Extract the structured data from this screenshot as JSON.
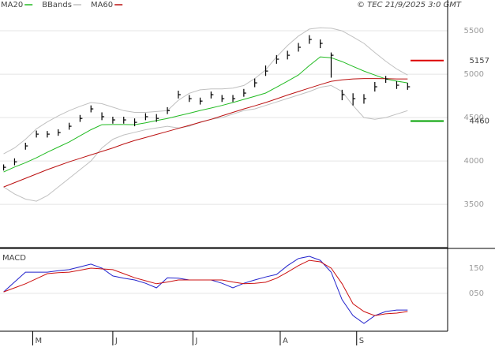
{
  "chart_data": [
    {
      "type": "ohlc",
      "source": "© TEC 21/9/2025 3:0 GMT",
      "x": [
        0,
        3,
        6,
        9,
        12,
        15,
        18,
        21,
        24,
        27,
        30,
        33,
        36,
        39,
        42,
        45,
        48,
        51,
        54,
        57,
        60,
        63,
        66,
        69,
        72,
        75,
        78,
        81,
        84,
        87,
        90,
        93,
        96,
        99,
        102,
        105,
        108,
        111
      ],
      "high": [
        3960,
        4030,
        4210,
        4350,
        4345,
        4365,
        4440,
        4530,
        4640,
        4560,
        4510,
        4510,
        4490,
        4550,
        4540,
        4620,
        4810,
        4760,
        4730,
        4800,
        4760,
        4760,
        4830,
        4950,
        5100,
        5220,
        5270,
        5360,
        5450,
        5400,
        5250,
        4820,
        4780,
        4770,
        4910,
        4980,
        4920,
        4900
      ],
      "low": [
        3890,
        3950,
        4130,
        4270,
        4270,
        4290,
        4360,
        4450,
        4560,
        4470,
        4430,
        4430,
        4400,
        4470,
        4450,
        4540,
        4720,
        4680,
        4650,
        4720,
        4680,
        4680,
        4740,
        4850,
        4980,
        5120,
        5170,
        5260,
        5350,
        5300,
        4960,
        4700,
        4640,
        4660,
        4800,
        4900,
        4830,
        4820
      ],
      "close": [
        3927,
        3990,
        4173,
        4309,
        4309,
        4327,
        4400,
        4490,
        4600,
        4510,
        4473,
        4473,
        4445,
        4510,
        4490,
        4580,
        4764,
        4718,
        4690,
        4764,
        4718,
        4718,
        4782,
        4900,
        5036,
        5173,
        5218,
        5310,
        5400,
        5355,
        5218,
        4764,
        4718,
        4718,
        4855,
        4945,
        4873,
        4855
      ],
      "color": "#000000",
      "series": [
        {
          "name": "MA20",
          "color": "#22bb22",
          "values": [
            3873,
            3930,
            3980,
            4036,
            4100,
            4160,
            4218,
            4290,
            4360,
            4418,
            4420,
            4420,
            4418,
            4440,
            4465,
            4490,
            4520,
            4550,
            4582,
            4610,
            4640,
            4673,
            4710,
            4745,
            4782,
            4850,
            4920,
            4991,
            5100,
            5200,
            5190,
            5145,
            5090,
            5036,
            4990,
            4945,
            4920,
            4900
          ]
        },
        {
          "name": "BBands",
          "color": "#c0c0c0",
          "values": [
            4082,
            4150,
            4250,
            4370,
            4450,
            4520,
            4580,
            4630,
            4673,
            4660,
            4620,
            4580,
            4560,
            4560,
            4570,
            4580,
            4700,
            4780,
            4820,
            4830,
            4830,
            4840,
            4870,
            4950,
            5050,
            5200,
            5330,
            5440,
            5520,
            5536,
            5530,
            5500,
            5430,
            5355,
            5250,
            5150,
            5060,
            4990
          ],
          "lower": [
            3700,
            3620,
            3560,
            3536,
            3600,
            3700,
            3800,
            3900,
            4000,
            4150,
            4250,
            4300,
            4330,
            4360,
            4380,
            4400,
            4380,
            4400,
            4450,
            4480,
            4500,
            4540,
            4582,
            4600,
            4640,
            4680,
            4720,
            4760,
            4800,
            4850,
            4870,
            4800,
            4640,
            4500,
            4480,
            4500,
            4540,
            4580
          ]
        },
        {
          "name": "MA60",
          "color": "#bb1111",
          "values": [
            3700,
            3750,
            3800,
            3850,
            3900,
            3945,
            3990,
            4030,
            4070,
            4110,
            4150,
            4195,
            4236,
            4270,
            4305,
            4340,
            4375,
            4410,
            4445,
            4480,
            4520,
            4560,
            4600,
            4635,
            4673,
            4715,
            4760,
            4800,
            4840,
            4880,
            4918,
            4935,
            4945,
            4950,
            4950,
            4948,
            4945,
            4945
          ]
        }
      ],
      "annotations": [
        {
          "value": 5157,
          "color": "#dd0000"
        },
        {
          "value": 4460,
          "color": "#00a000"
        }
      ],
      "xlim": [
        -1,
        122
      ],
      "ylim": [
        3010,
        5855
      ],
      "yticks": [
        3500,
        4000,
        4500,
        5000,
        5500
      ],
      "grid": true
    },
    {
      "type": "line",
      "title": "MACD",
      "x": [
        0,
        3,
        6,
        9,
        12,
        15,
        18,
        21,
        24,
        27,
        30,
        33,
        36,
        39,
        42,
        45,
        48,
        51,
        54,
        57,
        60,
        63,
        66,
        69,
        72,
        75,
        78,
        81,
        84,
        87,
        90,
        93,
        96,
        99,
        102,
        105,
        108,
        111
      ],
      "series": [
        {
          "color": "#2222cc",
          "values": [
            56,
            95,
            134,
            134,
            134,
            140,
            144,
            155,
            166,
            150,
            119,
            110,
            103,
            90,
            72,
            112,
            110,
            103,
            103,
            103,
            90,
            72,
            90,
            103,
            115,
            125,
            160,
            188,
            197,
            181,
            134,
            25,
            -38,
            -69,
            -38,
            -22,
            -16,
            -16
          ]
        },
        {
          "color": "#cc1111",
          "values": [
            56,
            72,
            88,
            108,
            128,
            132,
            134,
            142,
            150,
            147,
            144,
            128,
            112,
            100,
            88,
            95,
            103,
            103,
            103,
            103,
            103,
            95,
            88,
            90,
            94,
            110,
            134,
            160,
            181,
            175,
            150,
            88,
            9,
            -22,
            -38,
            -31,
            -28,
            -22
          ]
        }
      ],
      "xlim": [
        -1,
        122
      ],
      "ylim": [
        -100,
        225
      ],
      "yticks": [
        150,
        {
          "value": 50,
          "label": "050"
        }
      ],
      "xticks": [
        {
          "value": 8,
          "label": "M"
        },
        {
          "value": 30,
          "label": "J"
        },
        {
          "value": 52,
          "label": "J"
        },
        {
          "value": 76,
          "label": "A"
        },
        {
          "value": 97,
          "label": "S"
        }
      ],
      "grid": true
    }
  ]
}
